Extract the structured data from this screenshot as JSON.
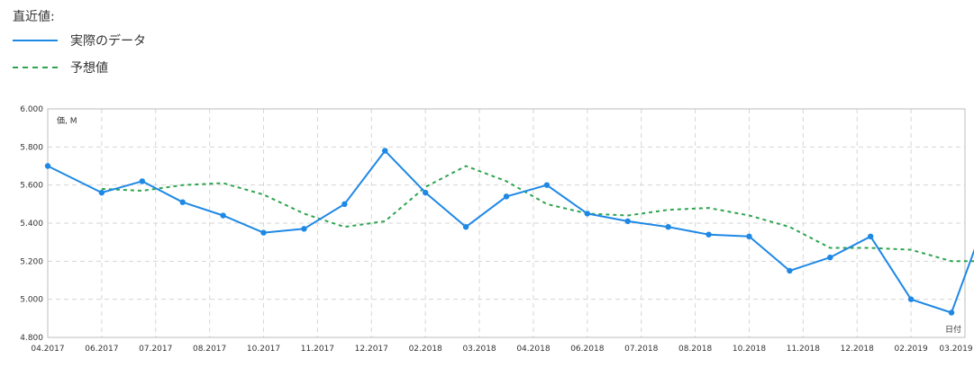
{
  "legend": {
    "title": "直近値:",
    "actual_label": "実際のデータ",
    "forecast_label": "予想値"
  },
  "colors": {
    "actual": "#1e88e5",
    "forecast": "#2ea44f",
    "grid": "#d6d6d6",
    "frame": "#bdbdbd"
  },
  "chart_data": {
    "type": "line",
    "ylabel": "価, M",
    "xlabel": "日付",
    "ylim": [
      4.8,
      6.0
    ],
    "y_ticks": [
      "6.000",
      "5.800",
      "5.600",
      "5.400",
      "5.200",
      "5.000",
      "4.800"
    ],
    "x_ticks": [
      "04.2017",
      "06.2017",
      "07.2017",
      "08.2017",
      "10.2017",
      "11.2017",
      "12.2017",
      "02.2018",
      "03.2018",
      "04.2018",
      "06.2018",
      "07.2018",
      "08.2018",
      "10.2018",
      "11.2018",
      "12.2018",
      "02.2019",
      "03.2019"
    ],
    "grid": true,
    "series": [
      {
        "name": "実際のデータ",
        "style": "solid",
        "markers": true,
        "points": [
          {
            "x": 0.0,
            "y": 5.7
          },
          {
            "x": 1.0,
            "y": 5.56
          },
          {
            "x": 1.75,
            "y": 5.62
          },
          {
            "x": 2.5,
            "y": 5.51
          },
          {
            "x": 3.25,
            "y": 5.44
          },
          {
            "x": 4.0,
            "y": 5.35
          },
          {
            "x": 4.75,
            "y": 5.37
          },
          {
            "x": 5.5,
            "y": 5.5
          },
          {
            "x": 6.25,
            "y": 5.78
          },
          {
            "x": 7.0,
            "y": 5.56
          },
          {
            "x": 7.75,
            "y": 5.38
          },
          {
            "x": 8.5,
            "y": 5.54
          },
          {
            "x": 9.25,
            "y": 5.6
          },
          {
            "x": 10.0,
            "y": 5.45
          },
          {
            "x": 10.75,
            "y": 5.41
          },
          {
            "x": 11.5,
            "y": 5.38
          },
          {
            "x": 12.25,
            "y": 5.34
          },
          {
            "x": 13.0,
            "y": 5.33
          },
          {
            "x": 13.75,
            "y": 5.15
          },
          {
            "x": 14.5,
            "y": 5.22
          },
          {
            "x": 15.25,
            "y": 5.33
          },
          {
            "x": 16.0,
            "y": 5.0
          },
          {
            "x": 16.75,
            "y": 4.93
          },
          {
            "x": 17.5,
            "y": 5.51
          }
        ]
      },
      {
        "name": "予想値",
        "style": "dashed",
        "markers": false,
        "points": [
          {
            "x": 1.0,
            "y": 5.58
          },
          {
            "x": 1.75,
            "y": 5.57
          },
          {
            "x": 2.5,
            "y": 5.6
          },
          {
            "x": 3.25,
            "y": 5.61
          },
          {
            "x": 4.0,
            "y": 5.55
          },
          {
            "x": 4.75,
            "y": 5.45
          },
          {
            "x": 5.5,
            "y": 5.38
          },
          {
            "x": 6.25,
            "y": 5.41
          },
          {
            "x": 7.0,
            "y": 5.59
          },
          {
            "x": 7.75,
            "y": 5.7
          },
          {
            "x": 8.5,
            "y": 5.62
          },
          {
            "x": 9.25,
            "y": 5.5
          },
          {
            "x": 10.0,
            "y": 5.45
          },
          {
            "x": 10.75,
            "y": 5.44
          },
          {
            "x": 11.5,
            "y": 5.47
          },
          {
            "x": 12.25,
            "y": 5.48
          },
          {
            "x": 13.0,
            "y": 5.44
          },
          {
            "x": 13.75,
            "y": 5.38
          },
          {
            "x": 14.5,
            "y": 5.27
          },
          {
            "x": 15.25,
            "y": 5.27
          },
          {
            "x": 16.0,
            "y": 5.26
          },
          {
            "x": 16.75,
            "y": 5.2
          },
          {
            "x": 17.5,
            "y": 5.2
          }
        ]
      }
    ]
  }
}
